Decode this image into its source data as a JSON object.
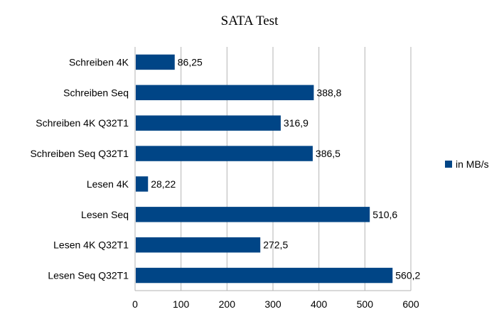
{
  "chart_data": {
    "type": "bar",
    "orientation": "horizontal",
    "title": "SATA Test",
    "categories": [
      "Schreiben 4K",
      "Schreiben Seq",
      "Schreiben 4K Q32T1",
      "Schreiben Seq Q32T1",
      "Lesen 4K",
      "Lesen Seq",
      "Lesen 4K Q32T1",
      "Lesen Seq Q32T1"
    ],
    "series": [
      {
        "name": "in MB/s",
        "values": [
          86.25,
          388.8,
          316.9,
          386.5,
          28.22,
          510.6,
          272.5,
          560.2
        ],
        "labels": [
          "86,25",
          "388,8",
          "316,9",
          "386,5",
          "28,22",
          "510,6",
          "272,5",
          "560,2"
        ]
      }
    ],
    "xlim": [
      0,
      600
    ],
    "xticks": [
      0,
      100,
      200,
      300,
      400,
      500,
      600
    ],
    "grid": true,
    "legend": "right",
    "color": "#004586"
  }
}
